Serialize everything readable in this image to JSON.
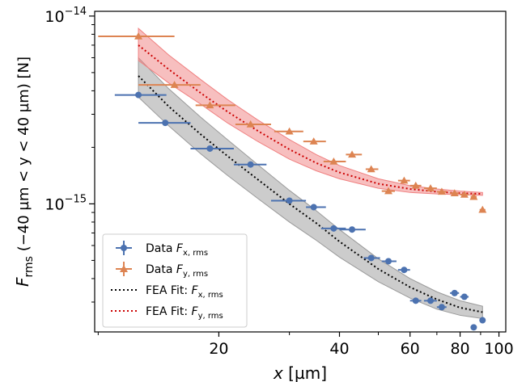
{
  "chart_data": {
    "type": "scatter",
    "x_scale": "log",
    "y_scale": "log",
    "xlim": [
      9.8,
      104
    ],
    "ylim": [
      2.08e-16,
      1.06e-14
    ],
    "grid": false,
    "legend_placement": "lower-left",
    "xlabel": {
      "main": "x",
      "unit": " [µm]"
    },
    "ylabel": {
      "main": "F",
      "sub": "rms",
      "rest": "  (−40 µm < y < 40 µm)  [N]"
    },
    "x_ticks": [
      {
        "value": 20,
        "label": "20"
      },
      {
        "value": 40,
        "label": "40"
      },
      {
        "value": 60,
        "label": "60"
      },
      {
        "value": 80,
        "label": "80"
      },
      {
        "value": 100,
        "label": "100"
      }
    ],
    "x_minor_ticks": [
      10,
      30,
      50,
      70,
      90
    ],
    "y_ticks": [
      {
        "value": 1e-15,
        "base": "10",
        "exp": "−15"
      },
      {
        "value": 1e-14,
        "base": "10",
        "exp": "−14"
      }
    ],
    "y_minor_ticks": [
      3e-16,
      4e-16,
      5e-16,
      6e-16,
      7e-16,
      8e-16,
      9e-16,
      2e-15,
      3e-15,
      4e-15,
      5e-15,
      6e-15,
      7e-15,
      8e-15,
      9e-15
    ],
    "series": [
      {
        "name": "Data F",
        "sub": "x, rms",
        "kind": "errorbar",
        "marker": "circle",
        "color": "#4c72b0",
        "points": [
          {
            "x": 12.6,
            "y": 3.8e-15,
            "xerr": [
              11.0,
              14.8
            ]
          },
          {
            "x": 14.7,
            "y": 2.7e-15,
            "xerr": [
              12.6,
              17.0
            ]
          },
          {
            "x": 19.0,
            "y": 1.97e-15,
            "xerr": [
              17.0,
              21.8
            ]
          },
          {
            "x": 24.0,
            "y": 1.62e-15,
            "xerr": [
              21.8,
              26.3
            ]
          },
          {
            "x": 30.0,
            "y": 1.04e-15,
            "xerr": [
              27.0,
              33.0
            ]
          },
          {
            "x": 34.5,
            "y": 9.6e-16,
            "xerr": [
              33.0,
              37.0
            ]
          },
          {
            "x": 38.7,
            "y": 7.4e-16,
            "xerr": [
              36.0,
              41.5
            ]
          },
          {
            "x": 43.0,
            "y": 7.3e-16,
            "xerr": [
              40.0,
              46.5
            ]
          },
          {
            "x": 48.0,
            "y": 5.15e-16,
            "xerr": [
              46.0,
              50.5
            ]
          },
          {
            "x": 53.0,
            "y": 4.95e-16,
            "xerr": [
              51.0,
              55.5
            ]
          },
          {
            "x": 58.0,
            "y": 4.45e-16,
            "xerr": [
              56.0,
              60.0
            ]
          },
          {
            "x": 62.0,
            "y": 3.05e-16,
            "xerr": [
              60.0,
              64.0
            ]
          },
          {
            "x": 67.5,
            "y": 3.05e-16,
            "xerr": [
              65.0,
              70.0
            ]
          },
          {
            "x": 72.0,
            "y": 2.82e-16,
            "xerr": [
              70.0,
              74.0
            ]
          },
          {
            "x": 77.5,
            "y": 3.35e-16,
            "xerr": [
              75.5,
              79.5
            ]
          },
          {
            "x": 82.0,
            "y": 3.2e-16,
            "xerr": [
              80.0,
              84.0
            ]
          },
          {
            "x": 86.5,
            "y": 2.2e-16,
            "xerr": [
              85.0,
              88.0
            ]
          },
          {
            "x": 91.0,
            "y": 2.4e-16,
            "xerr": [
              89.5,
              92.5
            ]
          }
        ]
      },
      {
        "name": "Data F",
        "sub": "y, rms",
        "kind": "errorbar",
        "marker": "triangle",
        "color": "#dd8452",
        "points": [
          {
            "x": 12.6,
            "y": 7.8e-15,
            "xerr": [
              10.0,
              15.5
            ]
          },
          {
            "x": 15.5,
            "y": 4.3e-15,
            "xerr": [
              12.6,
              18.0
            ]
          },
          {
            "x": 19.0,
            "y": 3.35e-15,
            "xerr": [
              17.5,
              22.0
            ]
          },
          {
            "x": 24.0,
            "y": 2.65e-15,
            "xerr": [
              22.0,
              27.0
            ]
          },
          {
            "x": 30.0,
            "y": 2.43e-15,
            "xerr": [
              27.5,
              32.5
            ]
          },
          {
            "x": 34.5,
            "y": 2.15e-15,
            "xerr": [
              32.5,
              37.0
            ]
          },
          {
            "x": 38.7,
            "y": 1.68e-15,
            "xerr": [
              36.5,
              41.5
            ]
          },
          {
            "x": 43.0,
            "y": 1.83e-15,
            "xerr": [
              41.5,
              45.5
            ]
          },
          {
            "x": 48.0,
            "y": 1.53e-15,
            "xerr": [
              46.5,
              50.0
            ]
          },
          {
            "x": 53.0,
            "y": 1.17e-15,
            "xerr": [
              51.0,
              55.0
            ]
          },
          {
            "x": 58.0,
            "y": 1.33e-15,
            "xerr": [
              56.0,
              60.0
            ]
          },
          {
            "x": 62.0,
            "y": 1.25e-15,
            "xerr": [
              60.0,
              64.0
            ]
          },
          {
            "x": 67.5,
            "y": 1.21e-15,
            "xerr": [
              65.0,
              70.0
            ]
          },
          {
            "x": 72.0,
            "y": 1.16e-15,
            "xerr": [
              70.0,
              74.0
            ]
          },
          {
            "x": 77.5,
            "y": 1.14e-15,
            "xerr": [
              75.5,
              79.5
            ]
          },
          {
            "x": 82.0,
            "y": 1.12e-15,
            "xerr": [
              80.0,
              84.0
            ]
          },
          {
            "x": 86.5,
            "y": 1.09e-15,
            "xerr": [
              85.0,
              88.0
            ]
          },
          {
            "x": 91.0,
            "y": 9.3e-16,
            "xerr": [
              89.5,
              92.5
            ]
          }
        ]
      },
      {
        "name": "FEA Fit: F",
        "sub": "x, rms",
        "kind": "fit",
        "color": "#000000",
        "band_color": "#9a9a9a",
        "x": [
          12.6,
          15,
          18,
          21,
          25,
          30,
          35,
          40,
          50,
          60,
          70,
          80,
          91
        ],
        "y": [
          4.8e-15,
          3.3e-15,
          2.35e-15,
          1.8e-15,
          1.35e-15,
          1e-15,
          7.9e-16,
          6.3e-16,
          4.5e-16,
          3.6e-16,
          3.1e-16,
          2.8e-16,
          2.65e-16
        ],
        "band_upper": [
          6e-15,
          4.1e-15,
          2.9e-15,
          2.2e-15,
          1.62e-15,
          1.18e-15,
          9.2e-16,
          7.3e-16,
          5.1e-16,
          4e-16,
          3.4e-16,
          3.05e-16,
          2.85e-16
        ],
        "band_lower": [
          3.7e-15,
          2.6e-15,
          1.85e-15,
          1.42e-15,
          1.07e-15,
          8e-16,
          6.4e-16,
          5.2e-16,
          3.85e-16,
          3.15e-16,
          2.75e-16,
          2.55e-16,
          2.45e-16
        ]
      },
      {
        "name": "FEA Fit: F",
        "sub": "y, rms",
        "kind": "fit",
        "color": "#cc0000",
        "band_color": "#f08080",
        "x": [
          12.6,
          15,
          18,
          21,
          25,
          30,
          35,
          40,
          50,
          60,
          70,
          80,
          91
        ],
        "y": [
          7e-15,
          5.2e-15,
          3.9e-15,
          3.1e-15,
          2.45e-15,
          1.95e-15,
          1.65e-15,
          1.47e-15,
          1.28e-15,
          1.2e-15,
          1.16e-15,
          1.14e-15,
          1.13e-15
        ],
        "band_upper": [
          8.6e-15,
          6.2e-15,
          4.6e-15,
          3.6e-15,
          2.8e-15,
          2.2e-15,
          1.83e-15,
          1.6e-15,
          1.36e-15,
          1.25e-15,
          1.2e-15,
          1.17e-15,
          1.15e-15
        ],
        "band_lower": [
          5.8e-15,
          4.4e-15,
          3.4e-15,
          2.7e-15,
          2.15e-15,
          1.73e-15,
          1.5e-15,
          1.36e-15,
          1.21e-15,
          1.15e-15,
          1.13e-15,
          1.12e-15,
          1.11e-15
        ]
      }
    ]
  }
}
